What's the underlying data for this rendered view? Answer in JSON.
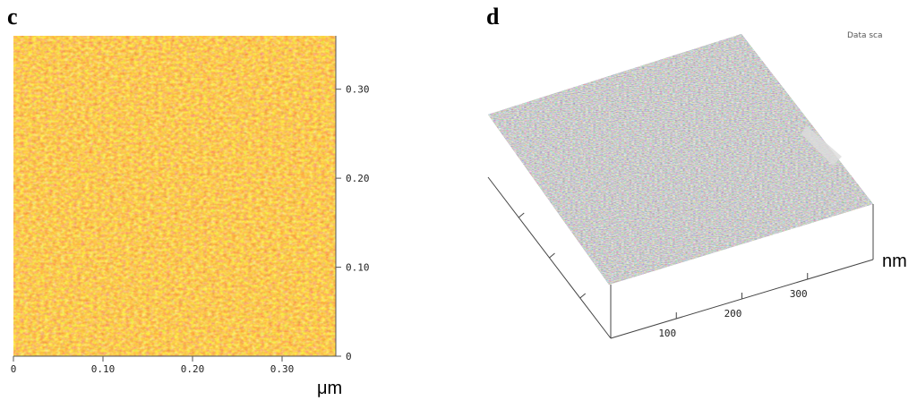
{
  "panels": [
    {
      "letter": "c",
      "x_ticks": [
        "0",
        "0.10",
        "0.20",
        "0.30"
      ],
      "y_ticks": [
        "0",
        "0.10",
        "0.20",
        "0.30"
      ],
      "x_unit": "μm",
      "colormap_colors": [
        "#c85a10",
        "#e8821a",
        "#f8b22a",
        "#fde05a"
      ]
    },
    {
      "letter": "d",
      "corner_label": "Data sca",
      "axis_ticks": [
        "100",
        "200",
        "300"
      ],
      "axis_unit": "nm",
      "surface_color": "#8a8a8a"
    }
  ],
  "chart_data": [
    {
      "type": "heatmap",
      "title": "",
      "xlabel": "μm",
      "ylabel": "",
      "xlim": [
        0,
        0.36
      ],
      "ylim": [
        0,
        0.36
      ],
      "x_ticks": [
        0,
        0.1,
        0.2,
        0.3
      ],
      "y_ticks": [
        0,
        0.1,
        0.2,
        0.3
      ]
    },
    {
      "type": "area",
      "title": "",
      "xlabel": "nm",
      "ylabel": "",
      "x_ticks": [
        100,
        200,
        300
      ]
    }
  ]
}
